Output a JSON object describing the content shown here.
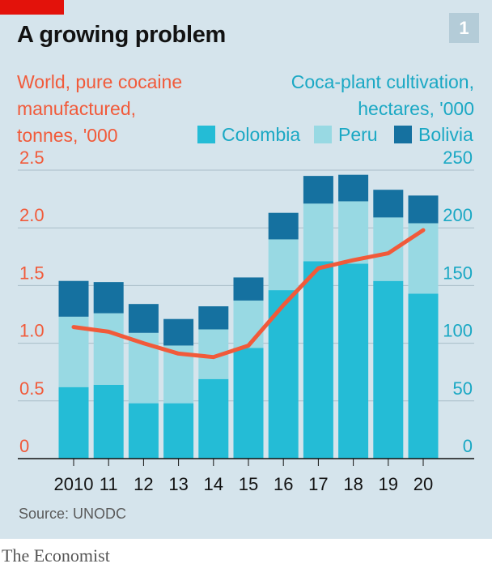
{
  "chart_data": {
    "type": "bar",
    "title": "A growing problem",
    "badge": "1",
    "left_axis_title": [
      "World, pure cocaine",
      "manufactured,",
      "tonnes, '000"
    ],
    "right_axis_title": [
      "Coca-plant cultivation,",
      "hectares, '000"
    ],
    "categories": [
      "2010",
      "11",
      "12",
      "13",
      "14",
      "15",
      "16",
      "17",
      "18",
      "19",
      "20"
    ],
    "series": [
      {
        "name": "Colombia",
        "color": "#24bcd6",
        "values": [
          62,
          64,
          48,
          48,
          69,
          96,
          146,
          171,
          169,
          154,
          143
        ]
      },
      {
        "name": "Peru",
        "color": "#98d9e3",
        "values": [
          61,
          62,
          61,
          50,
          43,
          41,
          44,
          50,
          54,
          55,
          61
        ]
      },
      {
        "name": "Bolivia",
        "color": "#1571a0",
        "values": [
          31,
          27,
          25,
          23,
          20,
          20,
          23,
          24,
          23,
          24,
          24
        ]
      }
    ],
    "line": {
      "name": "World, pure cocaine manufactured",
      "color": "#f15a3a",
      "values": [
        1.14,
        1.1,
        1.0,
        0.91,
        0.88,
        0.98,
        1.33,
        1.65,
        1.72,
        1.78,
        1.98
      ]
    },
    "left_axis": {
      "ticks": [
        "0",
        "0.5",
        "1.0",
        "1.5",
        "2.0",
        "2.5"
      ],
      "ylim": [
        0,
        2.5
      ],
      "color": "#f15a3a"
    },
    "right_axis": {
      "ticks": [
        "0",
        "50",
        "100",
        "150",
        "200",
        "250"
      ],
      "ylim": [
        0,
        250
      ],
      "color": "#1aa8c4"
    },
    "grid": true,
    "source": "Source: UNODC",
    "publisher": "The Economist"
  }
}
